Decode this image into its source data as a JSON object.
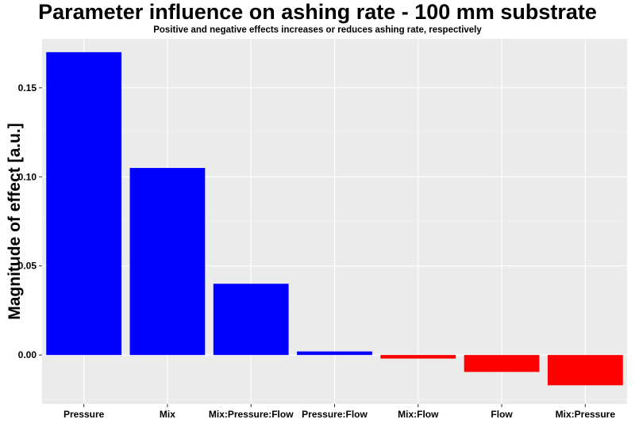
{
  "chart_data": {
    "type": "bar",
    "title": "Parameter influence on ashing rate - 100 mm substrate",
    "subtitle": "Positive and negative effects increases or reduces ashing rate, respectively",
    "xlabel": "",
    "ylabel": "Magnitude of effect [a.u.]",
    "categories": [
      "Pressure",
      "Mix",
      "Mix:Pressure:Flow",
      "Pressure:Flow",
      "Mix:Flow",
      "Flow",
      "Mix:Pressure"
    ],
    "values": [
      0.17,
      0.105,
      0.04,
      0.002,
      -0.002,
      -0.0095,
      -0.017
    ],
    "ylim": [
      -0.0275,
      0.1775
    ],
    "yticks": [
      0.0,
      0.05,
      0.1,
      0.15
    ],
    "ytick_labels": [
      "0.00",
      "0.05",
      "0.10",
      "0.15"
    ],
    "grid": true,
    "colors": {
      "positive": "#0000ff",
      "negative": "#ff0000",
      "panel_background": "#ebebeb",
      "grid_major": "#ffffff",
      "grid_minor": "#f5f5f5"
    }
  }
}
